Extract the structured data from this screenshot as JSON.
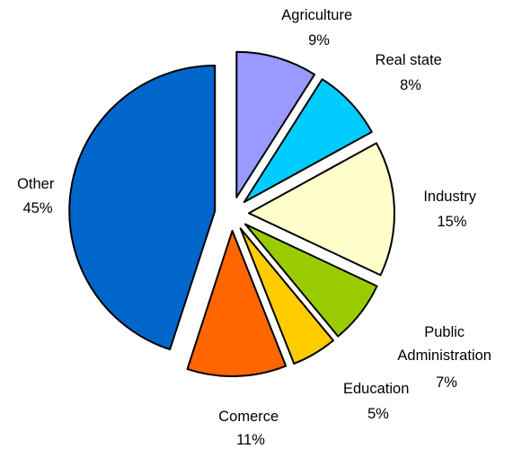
{
  "chart_data": {
    "type": "pie",
    "exploded": true,
    "slices": [
      {
        "label": "Agriculture",
        "value": 9,
        "value_text": "9%",
        "color": "#9999FF"
      },
      {
        "label": "Real state",
        "value": 8,
        "value_text": "8%",
        "color": "#00CCFF"
      },
      {
        "label": "Industry",
        "value": 15,
        "value_text": "15%",
        "color": "#FFFFCC"
      },
      {
        "label": "Public Administration",
        "value": 7,
        "value_text": "7%",
        "color": "#99CC00"
      },
      {
        "label": "Education",
        "value": 5,
        "value_text": "5%",
        "color": "#FFCC00"
      },
      {
        "label": "Comerce",
        "value": 11,
        "value_text": "11%",
        "color": "#FF6600"
      },
      {
        "label": "Other",
        "value": 45,
        "value_text": "45%",
        "color": "#0066CC"
      }
    ]
  }
}
